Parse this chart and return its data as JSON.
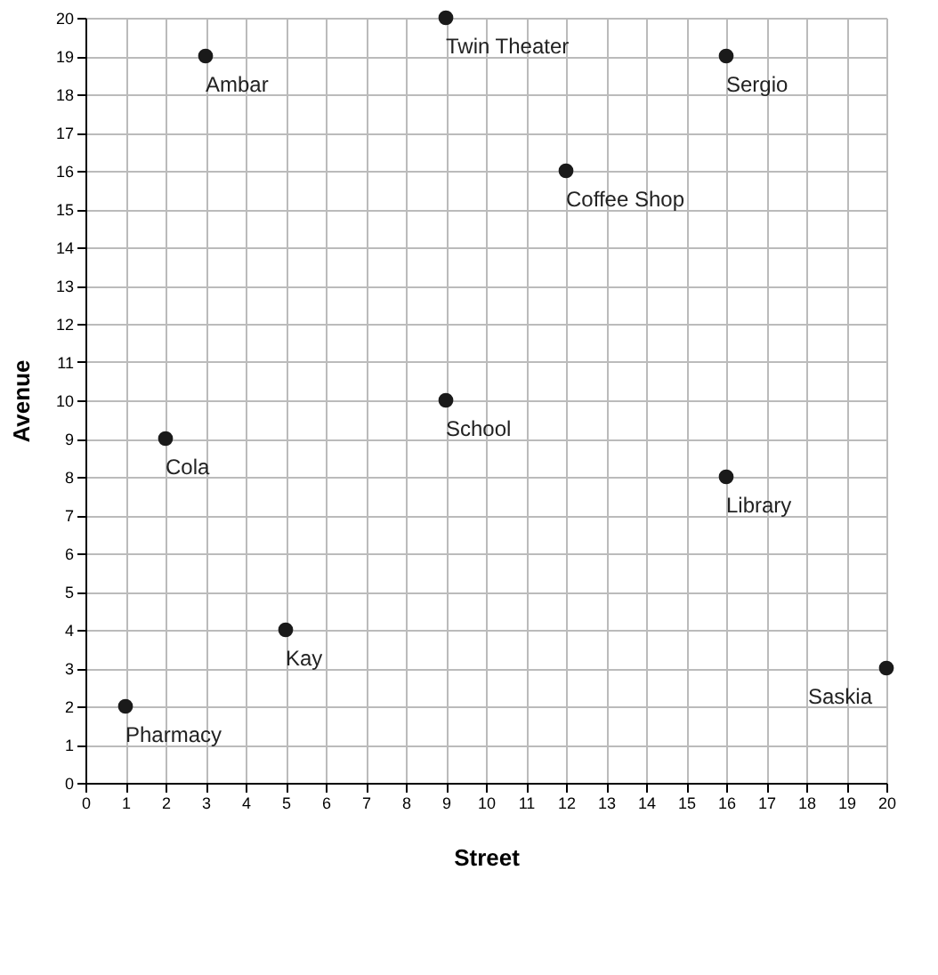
{
  "chart_data": {
    "type": "scatter",
    "xlabel": "Street",
    "ylabel": "Avenue",
    "x": [
      3,
      9,
      16,
      12,
      2,
      9,
      16,
      5,
      1,
      20
    ],
    "series": [
      {
        "color": "#1a1a1a",
        "values": [
          19,
          20,
          19,
          16,
          9,
          10,
          8,
          4,
          2,
          3
        ]
      }
    ],
    "xlim": [
      0,
      20
    ],
    "ylim": [
      0,
      20
    ],
    "xticks": [
      0,
      1,
      2,
      3,
      4,
      5,
      6,
      7,
      8,
      9,
      10,
      11,
      12,
      13,
      14,
      15,
      16,
      17,
      18,
      19,
      20
    ],
    "yticks": [
      0,
      1,
      2,
      3,
      4,
      5,
      6,
      7,
      8,
      9,
      10,
      11,
      12,
      13,
      14,
      15,
      16,
      17,
      18,
      19,
      20
    ],
    "grid": true,
    "marker": "circle",
    "annotations": [
      {
        "text": "Ambar",
        "x": 3,
        "y": 19
      },
      {
        "text": "Twin Theater",
        "x": 9,
        "y": 20
      },
      {
        "text": "Sergio",
        "x": 16,
        "y": 19
      },
      {
        "text": "Coffee Shop",
        "x": 12,
        "y": 16
      },
      {
        "text": "Cola",
        "x": 2,
        "y": 9
      },
      {
        "text": "School",
        "x": 9,
        "y": 10
      },
      {
        "text": "Library",
        "x": 16,
        "y": 8
      },
      {
        "text": "Kay",
        "x": 5,
        "y": 4
      },
      {
        "text": "Pharmacy",
        "x": 1,
        "y": 2
      },
      {
        "text": "Saskia",
        "x": 20,
        "y": 3
      }
    ]
  }
}
